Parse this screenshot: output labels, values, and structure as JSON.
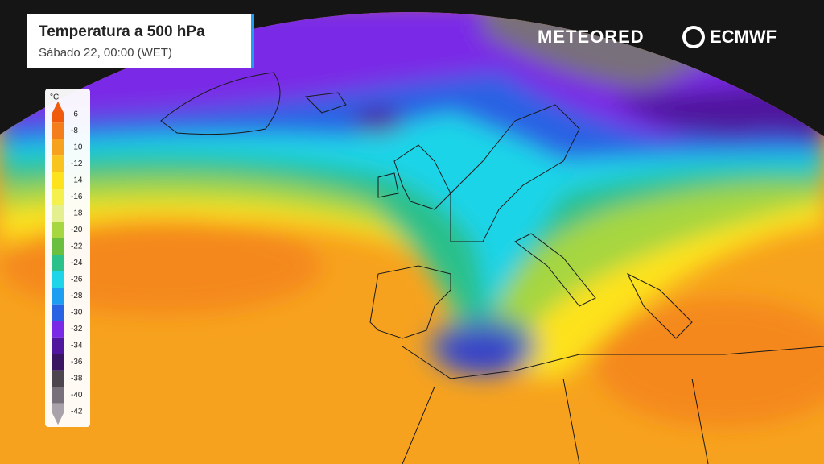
{
  "header": {
    "title": "Temperatura a 500 hPa",
    "subtitle": "Sábado 22, 00:00 (WET)"
  },
  "logos": {
    "left": "METEORED",
    "right": "ECMWF"
  },
  "legend": {
    "unit": "°C",
    "items": [
      {
        "value": -6,
        "color": "#ef5a0c"
      },
      {
        "value": -8,
        "color": "#f47e1c"
      },
      {
        "value": -10,
        "color": "#f7a21e"
      },
      {
        "value": -12,
        "color": "#fac41e"
      },
      {
        "value": -14,
        "color": "#fde21e"
      },
      {
        "value": -16,
        "color": "#f4f04e"
      },
      {
        "value": -18,
        "color": "#e4f090"
      },
      {
        "value": -20,
        "color": "#a6d640"
      },
      {
        "value": -22,
        "color": "#6abf3e"
      },
      {
        "value": -24,
        "color": "#2cc08a"
      },
      {
        "value": -26,
        "color": "#1ed4e8"
      },
      {
        "value": -28,
        "color": "#1e9ef0"
      },
      {
        "value": -30,
        "color": "#2a62e4"
      },
      {
        "value": -32,
        "color": "#7a2ae6"
      },
      {
        "value": -34,
        "color": "#50169e"
      },
      {
        "value": -36,
        "color": "#3a1662"
      },
      {
        "value": -38,
        "color": "#4e464e"
      },
      {
        "value": -40,
        "color": "#78707a"
      },
      {
        "value": -42,
        "color": "#aaa2aa"
      }
    ]
  }
}
